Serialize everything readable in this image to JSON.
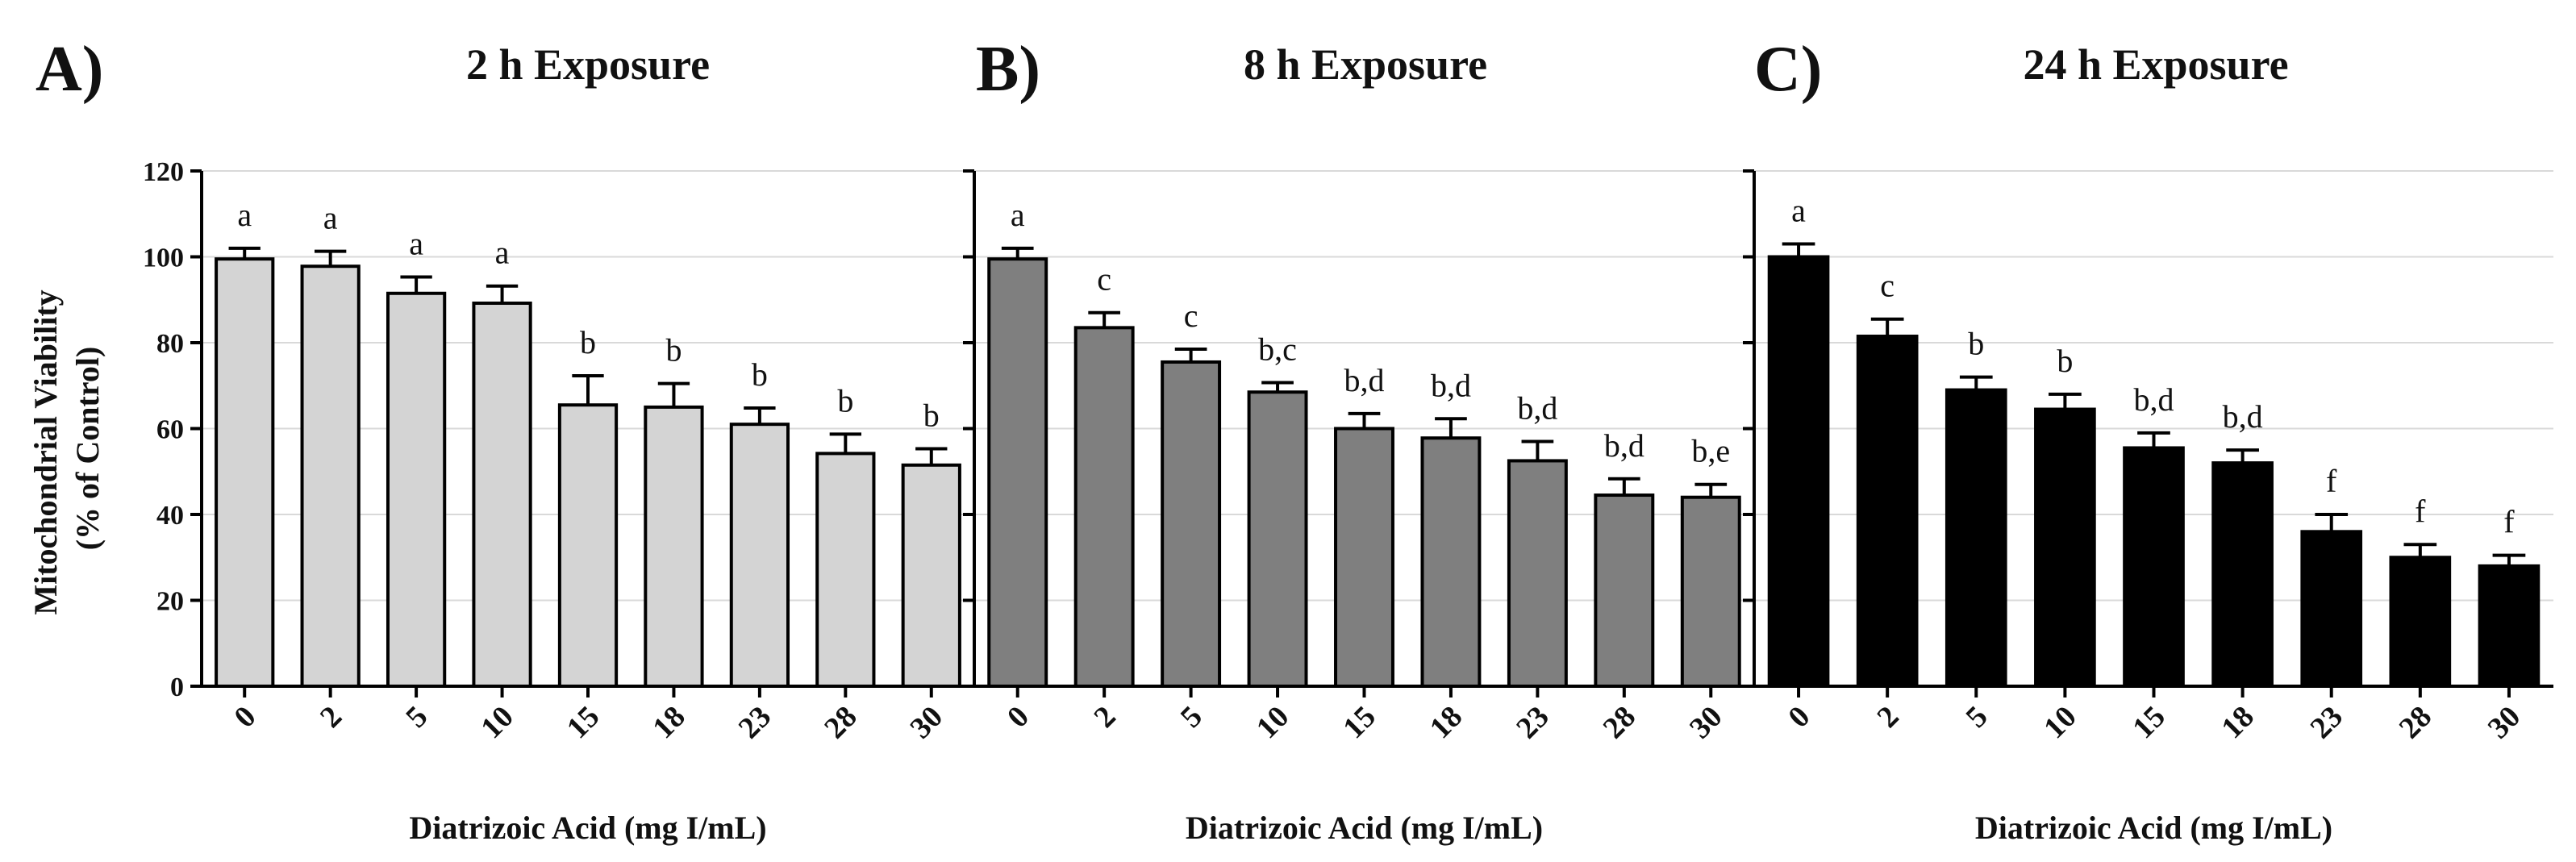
{
  "figure": {
    "ylabel_line1": "Mitochondrial Viability",
    "ylabel_line2": "(% of Control)"
  },
  "chart_data": [
    {
      "type": "bar",
      "panel_label": "A)",
      "title": "2 h Exposure",
      "xlabel": "Diatrizoic Acid (mg I/mL)",
      "ylabel": "Mitochondrial Viability (% of Control)",
      "ylim": [
        0,
        120
      ],
      "yticks": [
        "0",
        "20",
        "40",
        "60",
        "80",
        "100",
        "120"
      ],
      "grid": "horizontal",
      "bar_color": "#d4d4d4",
      "categories": [
        "0",
        "2",
        "5",
        "10",
        "15",
        "18",
        "23",
        "28",
        "30"
      ],
      "values": [
        99.5,
        97.8,
        91.5,
        89.2,
        65.5,
        65.0,
        61.0,
        54.2,
        51.5
      ],
      "errors": [
        2.5,
        3.5,
        3.8,
        4.0,
        6.8,
        5.5,
        3.8,
        4.5,
        3.8
      ],
      "annotations": [
        "a",
        "a",
        "a",
        "a",
        "b",
        "b",
        "b",
        "b",
        "b"
      ]
    },
    {
      "type": "bar",
      "panel_label": "B)",
      "title": "8 h Exposure",
      "xlabel": "Diatrizoic Acid (mg I/mL)",
      "ylim": [
        0,
        120
      ],
      "grid": "horizontal",
      "bar_color": "#7f7f7f",
      "categories": [
        "0",
        "2",
        "5",
        "10",
        "15",
        "18",
        "23",
        "28",
        "30"
      ],
      "values": [
        99.5,
        83.5,
        75.5,
        68.5,
        60.0,
        57.8,
        52.5,
        44.5,
        44.0
      ],
      "errors": [
        2.5,
        3.5,
        3.0,
        2.2,
        3.5,
        4.5,
        4.5,
        3.8,
        3.0
      ],
      "annotations": [
        "a",
        "c",
        "c",
        "b,c",
        "b,d",
        "b,d",
        "b,d",
        "b,d",
        "b,e"
      ]
    },
    {
      "type": "bar",
      "panel_label": "C)",
      "title": "24 h Exposure",
      "xlabel": "Diatrizoic Acid (mg I/mL)",
      "ylim": [
        0,
        120
      ],
      "grid": "horizontal",
      "bar_color": "#000000",
      "categories": [
        "0",
        "2",
        "5",
        "10",
        "15",
        "18",
        "23",
        "28",
        "30"
      ],
      "values": [
        100.0,
        81.5,
        69.0,
        64.5,
        55.5,
        52.0,
        36.0,
        30.0,
        28.0
      ],
      "errors": [
        3.0,
        4.0,
        3.0,
        3.5,
        3.5,
        3.0,
        4.0,
        3.0,
        2.5
      ],
      "annotations": [
        "a",
        "c",
        "b",
        "b",
        "b,d",
        "b,d",
        "f",
        "f",
        "f"
      ]
    }
  ]
}
